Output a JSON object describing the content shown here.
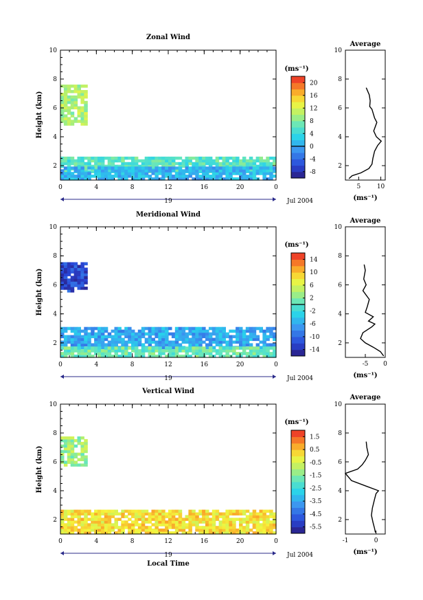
{
  "chart_data": [
    {
      "type": "heatmap",
      "title": "Zonal Wind",
      "ylabel": "Height (km)",
      "xlabel": "",
      "date_label": "Jul 2004",
      "day_label": "19",
      "ylim": [
        1,
        10
      ],
      "xlim": [
        0,
        24
      ],
      "x_ticks": [
        "0",
        "4",
        "8",
        "12",
        "16",
        "20",
        "0"
      ],
      "y_ticks": [
        "2",
        "4",
        "6",
        "8",
        "10"
      ],
      "colorbar": {
        "unit": "(ms⁻¹)",
        "vmin": -10,
        "vmax": 22,
        "ticks": [
          "20",
          "16",
          "12",
          "8",
          "4",
          "0",
          "-4",
          "-8"
        ],
        "tick_values": [
          20,
          16,
          12,
          8,
          4,
          0,
          -4,
          -8
        ],
        "zero_line": 0
      },
      "description_regions": [
        {
          "x": [
            0,
            3
          ],
          "y": [
            4.8,
            7.5
          ],
          "value": 10
        },
        {
          "x": [
            0,
            24
          ],
          "y": [
            1.5,
            2.6
          ],
          "value": 6
        },
        {
          "x": [
            0,
            24
          ],
          "y": [
            1.0,
            1.8
          ],
          "value": 1
        }
      ],
      "average": {
        "title": "Average",
        "xlabel": "(ms⁻¹)",
        "xlim": [
          2,
          11
        ],
        "x_ticks": [
          "5",
          "10"
        ],
        "x_tick_values": [
          5,
          10
        ],
        "y_ticks": [
          "2",
          "4",
          "6",
          "8",
          "10"
        ],
        "profile": [
          [
            2.8,
            1.1
          ],
          [
            3.5,
            1.3
          ],
          [
            5.5,
            1.5
          ],
          [
            7.3,
            1.8
          ],
          [
            8.0,
            2.1
          ],
          [
            8.2,
            2.5
          ],
          [
            8.6,
            3.0
          ],
          [
            9.3,
            3.4
          ],
          [
            10.1,
            3.7
          ],
          [
            9.0,
            4.0
          ],
          [
            8.4,
            4.4
          ],
          [
            9.1,
            5.0
          ],
          [
            8.6,
            5.3
          ],
          [
            8.0,
            5.9
          ],
          [
            7.5,
            6.1
          ],
          [
            7.6,
            6.5
          ],
          [
            7.4,
            6.9
          ],
          [
            6.7,
            7.4
          ]
        ]
      }
    },
    {
      "type": "heatmap",
      "title": "Meridional Wind",
      "ylabel": "Height (km)",
      "xlabel": "",
      "date_label": "Jul 2004",
      "day_label": "19",
      "ylim": [
        1,
        10
      ],
      "xlim": [
        0,
        24
      ],
      "x_ticks": [
        "0",
        "4",
        "8",
        "12",
        "16",
        "20",
        "0"
      ],
      "y_ticks": [
        "2",
        "4",
        "6",
        "8",
        "10"
      ],
      "colorbar": {
        "unit": "(ms⁻¹)",
        "vmin": -16,
        "vmax": 16,
        "ticks": [
          "14",
          "10",
          "6",
          "2",
          "-2",
          "-6",
          "-10",
          "-14"
        ],
        "tick_values": [
          14,
          10,
          6,
          2,
          -2,
          -6,
          -10,
          -14
        ],
        "zero_line": 0
      },
      "description_regions": [
        {
          "x": [
            0,
            3
          ],
          "y": [
            5.5,
            7.5
          ],
          "value": -12
        },
        {
          "x": [
            0,
            24
          ],
          "y": [
            1.6,
            3.0
          ],
          "value": -6
        },
        {
          "x": [
            0,
            24
          ],
          "y": [
            1.0,
            1.6
          ],
          "value": 1
        }
      ],
      "average": {
        "title": "Average",
        "xlabel": "(ms⁻¹)",
        "xlim": [
          -10,
          0
        ],
        "x_ticks": [
          "-5",
          "0"
        ],
        "x_tick_values": [
          -5,
          0
        ],
        "y_ticks": [
          "2",
          "4",
          "6",
          "8",
          "10"
        ],
        "profile": [
          [
            -0.4,
            1.1
          ],
          [
            -1.2,
            1.4
          ],
          [
            -3.0,
            1.7
          ],
          [
            -5.0,
            2.0
          ],
          [
            -6.2,
            2.3
          ],
          [
            -5.6,
            2.7
          ],
          [
            -3.4,
            3.1
          ],
          [
            -2.6,
            3.3
          ],
          [
            -4.2,
            3.5
          ],
          [
            -3.0,
            3.8
          ],
          [
            -5.0,
            4.1
          ],
          [
            -4.5,
            4.5
          ],
          [
            -4.0,
            5.0
          ],
          [
            -5.6,
            5.6
          ],
          [
            -4.8,
            6.0
          ],
          [
            -5.4,
            6.4
          ],
          [
            -5.0,
            7.0
          ],
          [
            -5.3,
            7.4
          ]
        ]
      }
    },
    {
      "type": "heatmap",
      "title": "Vertical Wind",
      "ylabel": "Height (km)",
      "xlabel": "Local Time",
      "date_label": "Jul 2004",
      "day_label": "19",
      "ylim": [
        1,
        10
      ],
      "xlim": [
        0,
        24
      ],
      "x_ticks": [
        "0",
        "4",
        "8",
        "12",
        "16",
        "20",
        "0"
      ],
      "y_ticks": [
        "2",
        "4",
        "6",
        "8",
        "10"
      ],
      "colorbar": {
        "unit": "(ms⁻¹)",
        "vmin": -6,
        "vmax": 2,
        "ticks": [
          "1.5",
          "0.5",
          "-0.5",
          "-1.5",
          "-2.5",
          "-3.5",
          "-4.5",
          "-5.5"
        ],
        "tick_values": [
          1.5,
          0.5,
          -0.5,
          -1.5,
          -2.5,
          -3.5,
          -4.5,
          -5.5
        ]
      },
      "description_regions": [
        {
          "x": [
            0,
            3
          ],
          "y": [
            5.7,
            7.6
          ],
          "value": -1.2
        },
        {
          "x": [
            0,
            24
          ],
          "y": [
            1.0,
            2.6
          ],
          "value": 0.1
        }
      ],
      "average": {
        "title": "Average",
        "xlabel": "(ms⁻¹)",
        "xlim": [
          -1,
          0.3
        ],
        "x_ticks": [
          "-1",
          "0"
        ],
        "x_tick_values": [
          -1,
          0
        ],
        "y_ticks": [
          "2",
          "4",
          "6",
          "8",
          "10"
        ],
        "profile": [
          [
            -0.02,
            1.1
          ],
          [
            -0.05,
            1.4
          ],
          [
            -0.1,
            1.8
          ],
          [
            -0.15,
            2.3
          ],
          [
            -0.12,
            2.8
          ],
          [
            -0.05,
            3.4
          ],
          [
            0.0,
            3.8
          ],
          [
            0.08,
            4.0
          ],
          [
            -0.3,
            4.3
          ],
          [
            -0.8,
            4.7
          ],
          [
            -1.0,
            5.2
          ],
          [
            -0.6,
            5.5
          ],
          [
            -0.45,
            5.8
          ],
          [
            -0.35,
            6.1
          ],
          [
            -0.25,
            6.5
          ],
          [
            -0.3,
            7.0
          ],
          [
            -0.32,
            7.4
          ]
        ]
      }
    }
  ]
}
